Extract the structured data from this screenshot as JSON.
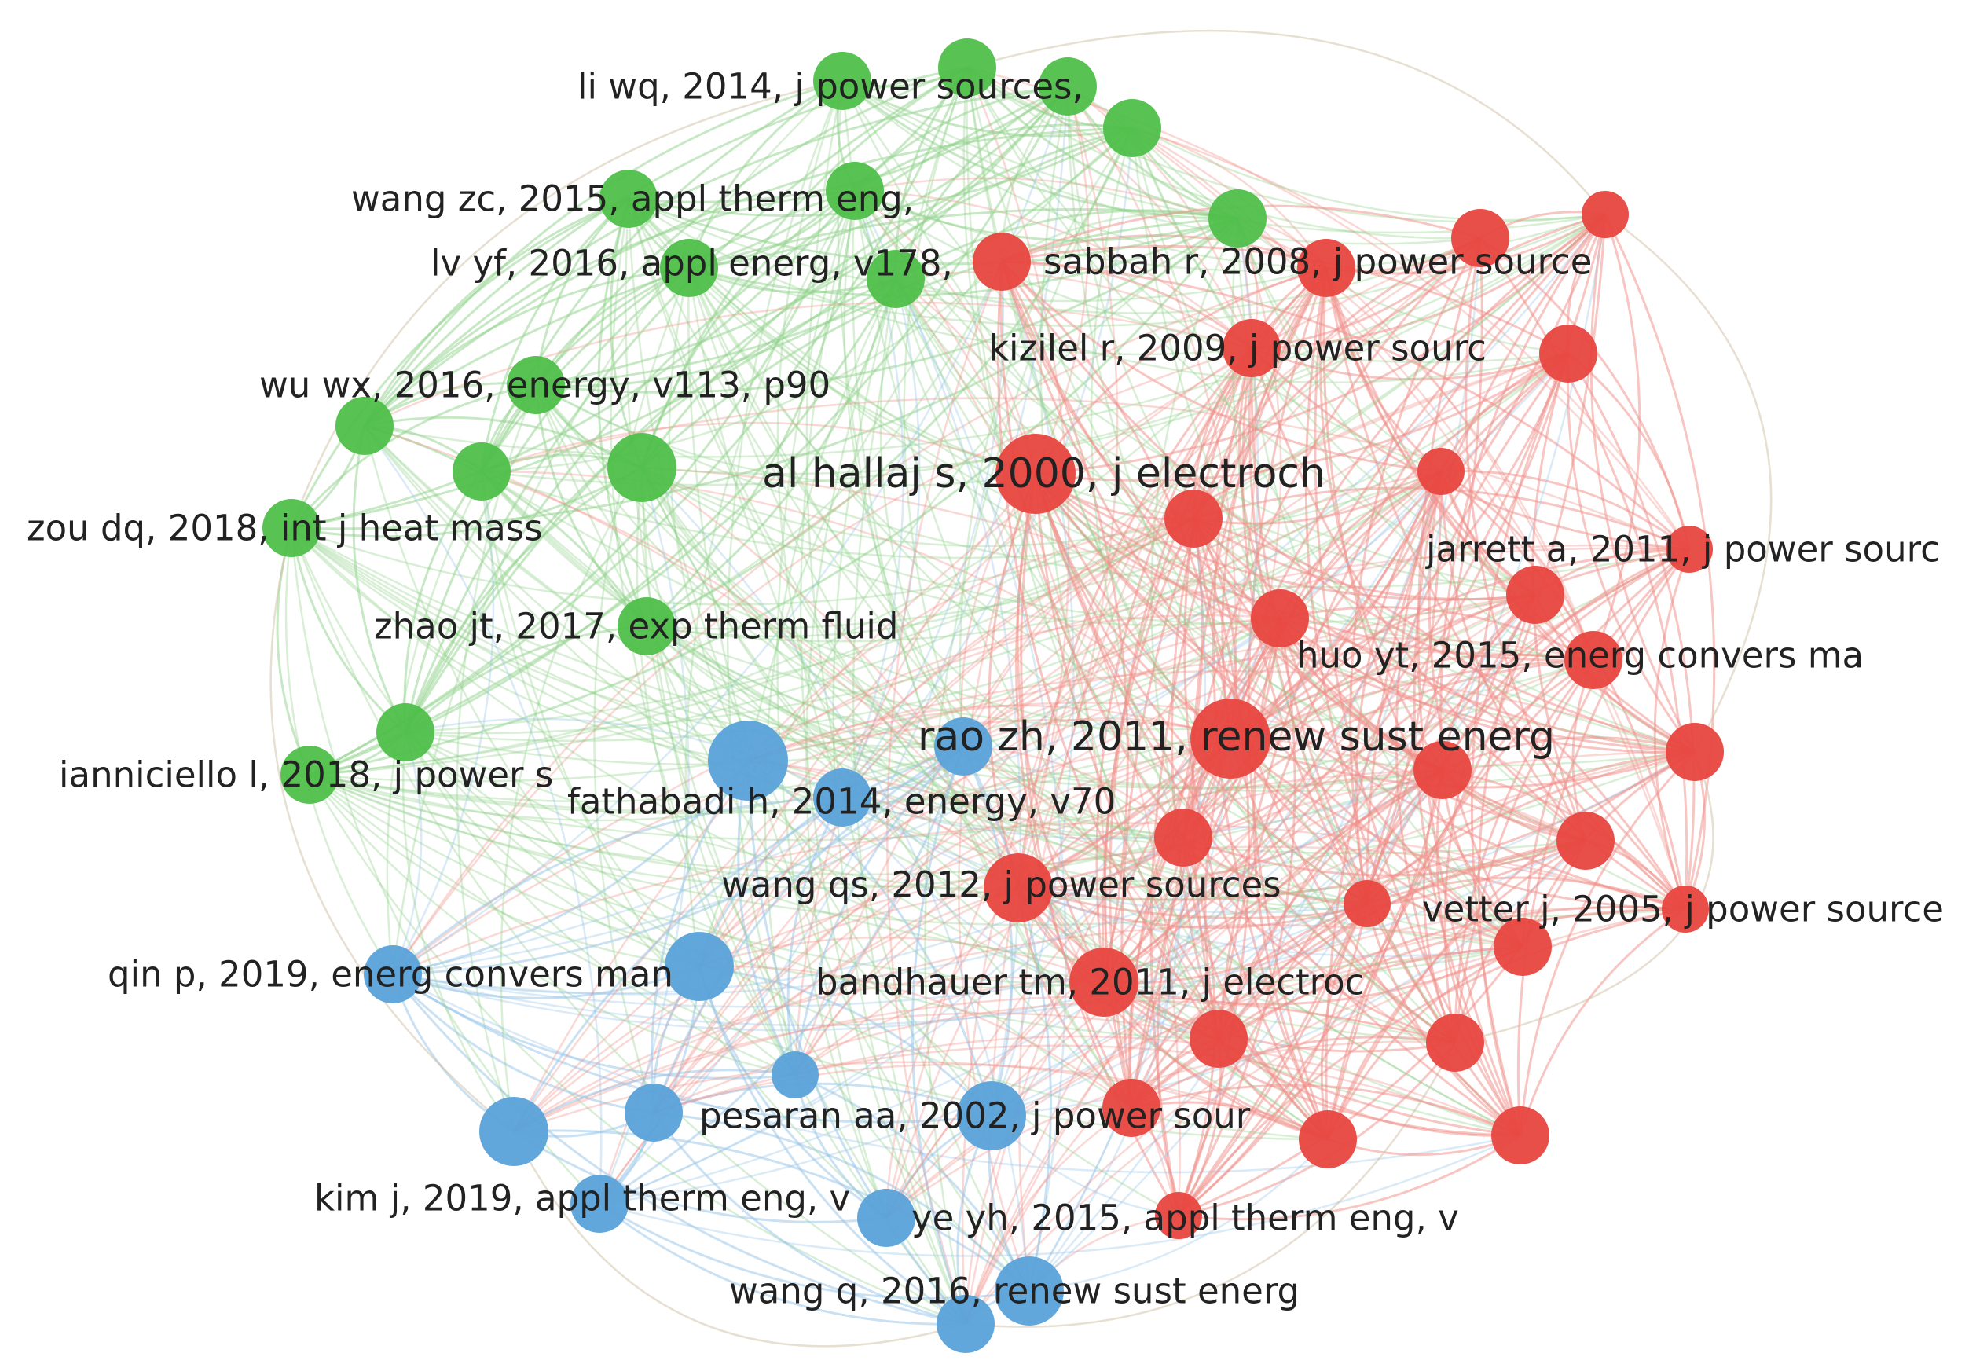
{
  "clusters": [
    {
      "id": "green",
      "color": "#4fbf4a",
      "edge_color": "#8fd18a"
    },
    {
      "id": "red",
      "color": "#e8463f",
      "edge_color": "#f08e88"
    },
    {
      "id": "blue",
      "color": "#5aa2d9",
      "edge_color": "#95c3e8"
    }
  ],
  "nodes": [
    {
      "label": "li wq, 2014, j power sources,",
      "cluster": "green",
      "weight": 3
    },
    {
      "label": "wang zc, 2015, appl therm eng,",
      "cluster": "green",
      "weight": 3
    },
    {
      "label": "lv yf, 2016, appl energ, v178,",
      "cluster": "green",
      "weight": 3
    },
    {
      "label": "wu wx, 2016, energy, v113, p90",
      "cluster": "green",
      "weight": 3
    },
    {
      "label": "zou dq, 2018, int j heat mass",
      "cluster": "green",
      "weight": 3
    },
    {
      "label": "zhao jt, 2017, exp therm fluid",
      "cluster": "green",
      "weight": 3
    },
    {
      "label": "ianniciello l, 2018, j power s",
      "cluster": "green",
      "weight": 3
    },
    {
      "label": "sabbah r, 2008, j power source",
      "cluster": "red",
      "weight": 3
    },
    {
      "label": "kizilel r, 2009, j power sourc",
      "cluster": "red",
      "weight": 3
    },
    {
      "label": "al hallaj s, 2000, j electroch",
      "cluster": "red",
      "weight": 5
    },
    {
      "label": "jarrett a, 2011, j power sourc",
      "cluster": "red",
      "weight": 2
    },
    {
      "label": "huo yt, 2015, energ convers ma",
      "cluster": "red",
      "weight": 3
    },
    {
      "label": "rao zh, 2011, renew sust energ",
      "cluster": "red",
      "weight": 5
    },
    {
      "label": "wang qs, 2012, j power sources",
      "cluster": "red",
      "weight": 4
    },
    {
      "label": "vetter j, 2005, j power source",
      "cluster": "red",
      "weight": 2
    },
    {
      "label": "bandhauer tm, 2011, j electroc",
      "cluster": "red",
      "weight": 4
    },
    {
      "label": "fathabadi h, 2014, energy, v70",
      "cluster": "blue",
      "weight": 3
    },
    {
      "label": "qin p, 2019, energ convers man",
      "cluster": "blue",
      "weight": 3
    },
    {
      "label": "pesaran aa, 2002, j power sour",
      "cluster": "blue",
      "weight": 4
    },
    {
      "label": "kim j, 2019, appl therm eng, v",
      "cluster": "blue",
      "weight": 3
    },
    {
      "label": "ye yh, 2015, appl therm eng, v",
      "cluster": "red",
      "weight": 2
    },
    {
      "label": "wang q, 2016, renew sust energ",
      "cluster": "blue",
      "weight": 4
    },
    {
      "label": "",
      "cluster": "green",
      "weight": 3
    },
    {
      "label": "",
      "cluster": "green",
      "weight": 3
    },
    {
      "label": "",
      "cluster": "green",
      "weight": 3
    },
    {
      "label": "",
      "cluster": "green",
      "weight": 3
    },
    {
      "label": "",
      "cluster": "green",
      "weight": 3
    },
    {
      "label": "",
      "cluster": "green",
      "weight": 4
    },
    {
      "label": "",
      "cluster": "green",
      "weight": 3
    },
    {
      "label": "",
      "cluster": "green",
      "weight": 3
    },
    {
      "label": "",
      "cluster": "green",
      "weight": 3
    },
    {
      "label": "",
      "cluster": "green",
      "weight": 3
    },
    {
      "label": "",
      "cluster": "red",
      "weight": 2
    },
    {
      "label": "",
      "cluster": "red",
      "weight": 3
    },
    {
      "label": "",
      "cluster": "red",
      "weight": 3
    },
    {
      "label": "",
      "cluster": "red",
      "weight": 3
    },
    {
      "label": "",
      "cluster": "red",
      "weight": 3
    },
    {
      "label": "",
      "cluster": "red",
      "weight": 2
    },
    {
      "label": "",
      "cluster": "red",
      "weight": 3
    },
    {
      "label": "",
      "cluster": "red",
      "weight": 3
    },
    {
      "label": "",
      "cluster": "red",
      "weight": 3
    },
    {
      "label": "",
      "cluster": "red",
      "weight": 3
    },
    {
      "label": "",
      "cluster": "red",
      "weight": 3
    },
    {
      "label": "",
      "cluster": "red",
      "weight": 3
    },
    {
      "label": "",
      "cluster": "red",
      "weight": 2
    },
    {
      "label": "",
      "cluster": "red",
      "weight": 3
    },
    {
      "label": "",
      "cluster": "red",
      "weight": 3
    },
    {
      "label": "",
      "cluster": "red",
      "weight": 3
    },
    {
      "label": "",
      "cluster": "red",
      "weight": 3
    },
    {
      "label": "",
      "cluster": "red",
      "weight": 3
    },
    {
      "label": "",
      "cluster": "red",
      "weight": 3
    },
    {
      "label": "",
      "cluster": "blue",
      "weight": 5
    },
    {
      "label": "",
      "cluster": "blue",
      "weight": 4
    },
    {
      "label": "",
      "cluster": "blue",
      "weight": 3
    },
    {
      "label": "",
      "cluster": "blue",
      "weight": 2
    },
    {
      "label": "",
      "cluster": "blue",
      "weight": 4
    },
    {
      "label": "",
      "cluster": "blue",
      "weight": 3
    },
    {
      "label": "",
      "cluster": "blue",
      "weight": 3
    },
    {
      "label": "",
      "cluster": "blue",
      "weight": 3
    }
  ]
}
